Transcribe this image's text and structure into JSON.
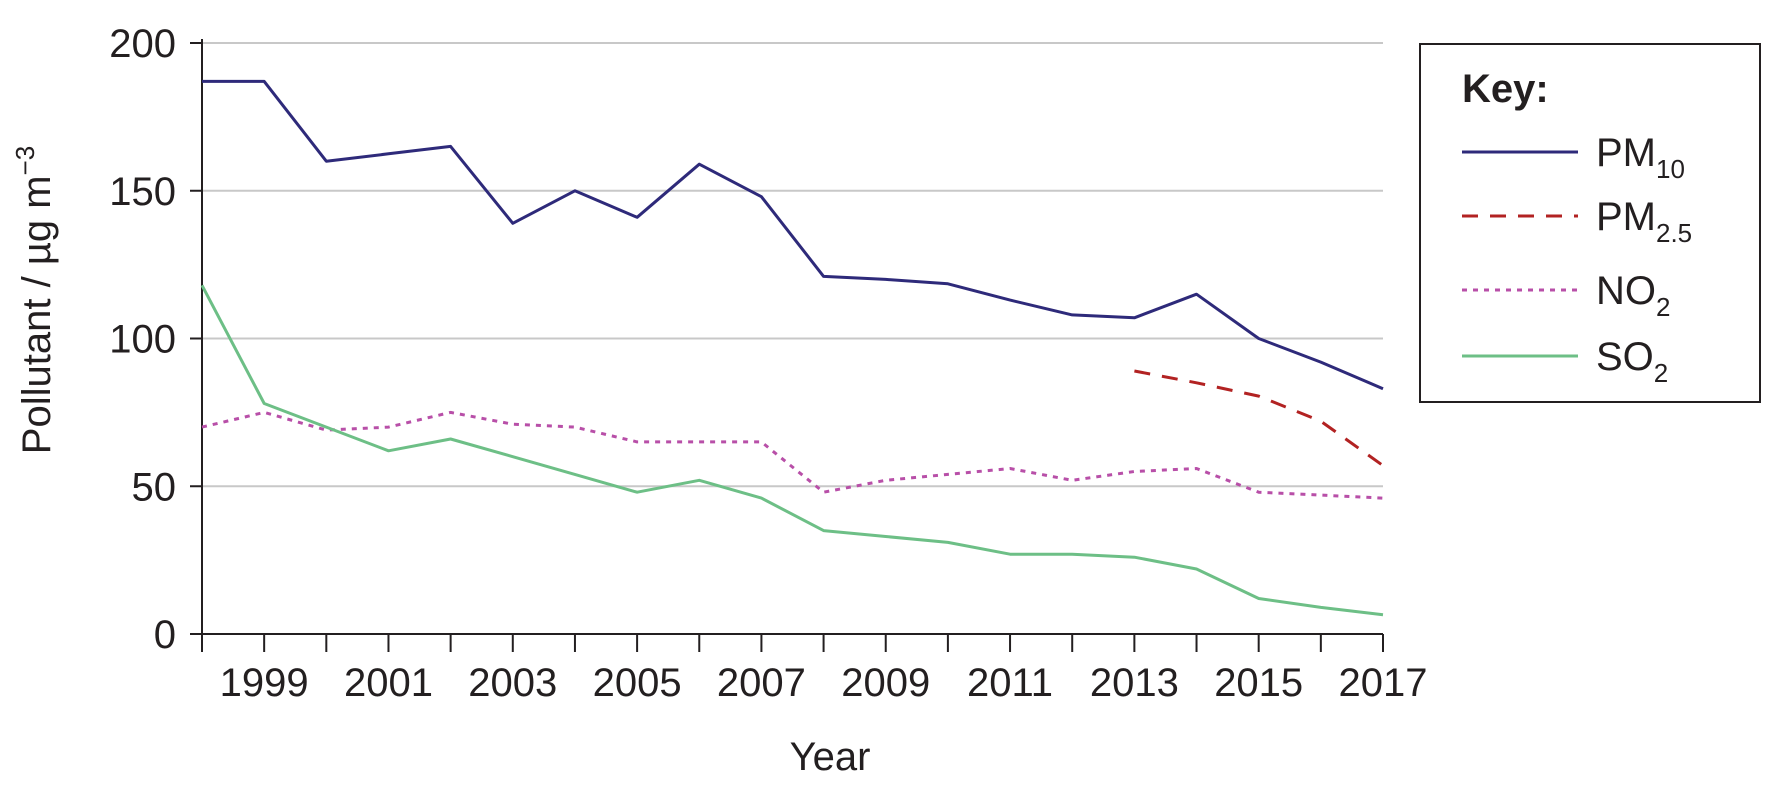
{
  "chart_data": {
    "type": "line",
    "xlabel": "Year",
    "ylabel": "Pollutant / µg m",
    "ylabel_sup": "−3",
    "xlim": [
      1998,
      2017
    ],
    "ylim": [
      0,
      200
    ],
    "y_ticks": [
      0,
      50,
      100,
      150,
      200
    ],
    "x_ticks": [
      1998,
      1999,
      2000,
      2001,
      2002,
      2003,
      2004,
      2005,
      2006,
      2007,
      2008,
      2009,
      2010,
      2011,
      2012,
      2013,
      2014,
      2015,
      2016,
      2017
    ],
    "x_tick_labels": [
      {
        "x": 1999,
        "label": "1999"
      },
      {
        "x": 2001,
        "label": "2001"
      },
      {
        "x": 2003,
        "label": "2003"
      },
      {
        "x": 2005,
        "label": "2005"
      },
      {
        "x": 2007,
        "label": "2007"
      },
      {
        "x": 2009,
        "label": "2009"
      },
      {
        "x": 2011,
        "label": "2011"
      },
      {
        "x": 2013,
        "label": "2013"
      },
      {
        "x": 2015,
        "label": "2015"
      },
      {
        "x": 2017,
        "label": "2017"
      }
    ],
    "grid": "horizontal",
    "legend": {
      "title": "Key:",
      "placement": "right"
    },
    "series": [
      {
        "name": "PM",
        "sub": "10",
        "color": "#2e2a7a",
        "dash": "solid",
        "points": [
          [
            1998,
            187
          ],
          [
            1999,
            187
          ],
          [
            2000,
            160
          ],
          [
            2001,
            162.5
          ],
          [
            2002,
            165
          ],
          [
            2003,
            139
          ],
          [
            2004,
            150
          ],
          [
            2005,
            141
          ],
          [
            2006,
            159
          ],
          [
            2007,
            148
          ],
          [
            2008,
            121
          ],
          [
            2009,
            120
          ],
          [
            2010,
            118.5
          ],
          [
            2011,
            113
          ],
          [
            2012,
            108
          ],
          [
            2013,
            107
          ],
          [
            2014,
            115
          ],
          [
            2015,
            100
          ],
          [
            2016,
            92
          ],
          [
            2017,
            83
          ]
        ]
      },
      {
        "name": "PM",
        "sub": "2.5",
        "color": "#b22222",
        "dash": "dashed",
        "points": [
          [
            2013,
            89
          ],
          [
            2014,
            85
          ],
          [
            2015,
            80.5
          ],
          [
            2016,
            72
          ],
          [
            2017,
            57
          ]
        ]
      },
      {
        "name": "NO",
        "sub": "2",
        "color": "#b84fa8",
        "dash": "dotted",
        "points": [
          [
            1998,
            70
          ],
          [
            1999,
            75
          ],
          [
            2000,
            69
          ],
          [
            2001,
            70
          ],
          [
            2002,
            75
          ],
          [
            2003,
            71
          ],
          [
            2004,
            70
          ],
          [
            2005,
            65
          ],
          [
            2006,
            65
          ],
          [
            2007,
            65
          ],
          [
            2008,
            48
          ],
          [
            2009,
            52
          ],
          [
            2010,
            54
          ],
          [
            2011,
            56
          ],
          [
            2012,
            52
          ],
          [
            2013,
            55
          ],
          [
            2014,
            56
          ],
          [
            2015,
            48
          ],
          [
            2016,
            47
          ],
          [
            2017,
            46
          ]
        ]
      },
      {
        "name": "SO",
        "sub": "2",
        "color": "#6dbf86",
        "dash": "solid",
        "points": [
          [
            1998,
            118
          ],
          [
            1999,
            78
          ],
          [
            2000,
            70
          ],
          [
            2001,
            62
          ],
          [
            2002,
            66
          ],
          [
            2003,
            60
          ],
          [
            2004,
            54
          ],
          [
            2005,
            48
          ],
          [
            2006,
            52
          ],
          [
            2007,
            46
          ],
          [
            2008,
            35
          ],
          [
            2009,
            33
          ],
          [
            2010,
            31
          ],
          [
            2011,
            27
          ],
          [
            2012,
            27
          ],
          [
            2013,
            26
          ],
          [
            2014,
            22
          ],
          [
            2015,
            12
          ],
          [
            2016,
            9
          ],
          [
            2017,
            6.5
          ]
        ]
      }
    ]
  }
}
